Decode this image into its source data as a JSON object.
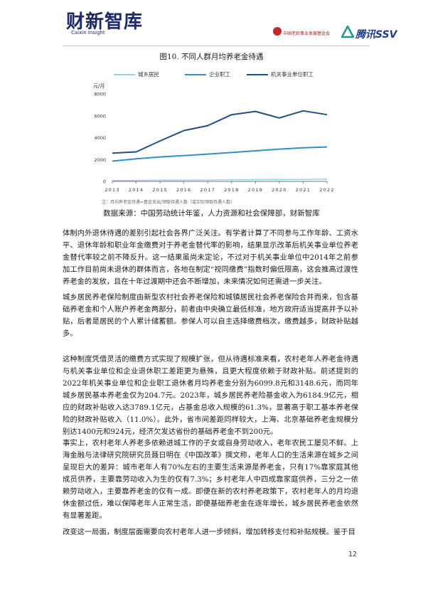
{
  "header": {
    "brand": "财新智库",
    "brand_sub": "Caixin Insight",
    "partner_1": "中国老龄事业发展基金会",
    "partner_2": "腾讯SSV"
  },
  "figure": {
    "title": "图10. 不同人群月均养老金待遇",
    "note": "注：月均养老金待遇=基金支出/领取待遇人数（或实际领取待遇人数）",
    "source": "数据来源：中国劳动统计年鉴，人力资源和社会保障部，财新智库"
  },
  "chart_data": {
    "type": "line",
    "x": [
      "2013",
      "2014",
      "2015",
      "2016",
      "2017",
      "2018",
      "2019",
      "2020",
      "2021",
      "2022"
    ],
    "y_unit": "元/月",
    "ylim": [
      0,
      8000
    ],
    "yticks": [
      "0",
      "2000",
      "4000",
      "6000",
      "8000"
    ],
    "grid": false,
    "legend": "top",
    "series": [
      {
        "name": "城乡居民",
        "color": "#8fd3e8",
        "values": [
          82,
          90,
          117,
          117,
          125,
          152,
          162,
          174,
          179,
          205
        ]
      },
      {
        "name": "企业职工",
        "color": "#2f8fd0",
        "values": [
          1856,
          2070,
          2240,
          2362,
          2500,
          2640,
          2800,
          2950,
          3070,
          3149
        ]
      },
      {
        "name": "机关事业单位职工",
        "color": "#1f4e8c",
        "values": [
          2580,
          2700,
          3700,
          4650,
          5100,
          6100,
          6400,
          5800,
          6450,
          6100
        ]
      }
    ]
  },
  "paragraphs": [
    "体制内外退休待遇的差别引起社会各界广泛关注。有学者计算了不同参与工作年龄、工资水平、退休年龄和职业年金缴费对于养老金替代率的影响，结果显示改革后机关事业单位养老金替代率较之前不降反升。这一结果虽尚未定论，不过对于机关事业单位中2014年之前参加工作目前尚未退休的群体而言，各地在制定“视同缴费”指数时偏低限高，这会推高过渡性养老金的发放，且在十年过渡期中还会不断增加，未来情况如何还需进一步关注。",
    "城乡居民养老保险制度由新型农村社会养老保险和城镇居民社会养老保险合并而来，包含基础养老金和个人账户养老金两部分，前者由中央确立最低标准，地方政府适当提高并予以补贴，后者是居民的个人累计储蓄额。参保人可以自主选择缴费档次，缴费越多，财政补贴越多。",
    "这种制度凭借灵活的缴费方式实现了规模扩张，但从待遇标准来看，农村老年人养老金待遇与机关事业单位和企业退休职工差距更为悬殊，且更大程度依赖于财政补贴。前述提到的2022年机关事业单位和企业职工退休者月均养老金分别为6099.8元和3148.6元，而同年城乡居民基本养老金仅为204.7元。2023年，城乡居民养老险基金收入为6184.9亿元，相应的财政补贴收入达3789.1亿元，占基金总收入规模的61.3%，显著高于职工基本养老保险的财政补贴收入（11.0%）。此外，省市间差距同样较大，上海、北京基础养老金规模分别达1400元和924元，经济欠发达省份的基础养老金不到200元。",
    "事实上，农村老年人养老多依赖进城工作的子女或自身劳动收入，老年农民工屡见不鲜。上海金融与法律研究院研究员聂日明在《中国改革》撰文称，老年人口的生活来源在城乡之间呈现巨大的差异：城市老年人有70%左右的主要生活来源是养老金，只有17%靠家庭其他成员供养，主要靠劳动收入为生的仅有7.3%；乡村老年人中四成靠家庭供养，三分之一依赖劳动收入，主要靠养老金的仅有一成。即便在新的农村养老政策下，农村老年人的月均退休金额过低，难以保障老年人正常生活，即便基础养老金在逐年增长，城乡居民养老金依然有显著差距。",
    "改变这一局面，制度层面需要向农村老年人进一步倾斜，增加转移支付和补贴规模。鉴于目"
  ],
  "page_number": "12"
}
